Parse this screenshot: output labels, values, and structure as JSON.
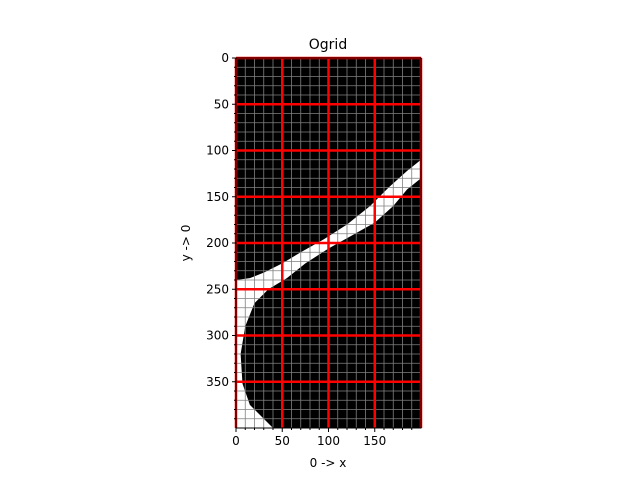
{
  "chart_data": {
    "type": "heatmap",
    "title": "Ogrid",
    "xlabel": "0 -> x",
    "ylabel": "y -> 0",
    "xlim": [
      0,
      200
    ],
    "ylim": [
      400,
      0
    ],
    "y_axis_inverted": true,
    "x_ticks": [
      0,
      50,
      100,
      150
    ],
    "y_ticks": [
      0,
      50,
      100,
      150,
      200,
      250,
      300,
      350
    ],
    "minor_grid_step": 10,
    "major_grid_step": 50,
    "grid": true,
    "colors": {
      "background": "#000000",
      "band": "#ffffff",
      "minor_grid": "#808080",
      "major_grid": "#ff0000"
    },
    "band_upper_edge": [
      [
        0,
        240
      ],
      [
        15,
        238
      ],
      [
        30,
        232
      ],
      [
        50,
        222
      ],
      [
        70,
        210
      ],
      [
        95,
        196
      ],
      [
        120,
        180
      ],
      [
        145,
        160
      ],
      [
        165,
        140
      ],
      [
        185,
        122
      ],
      [
        200,
        110
      ]
    ],
    "band_lower_edge": [
      [
        200,
        130
      ],
      [
        185,
        142
      ],
      [
        170,
        160
      ],
      [
        150,
        178
      ],
      [
        125,
        192
      ],
      [
        100,
        206
      ],
      [
        75,
        222
      ],
      [
        55,
        238
      ],
      [
        35,
        250
      ],
      [
        20,
        265
      ],
      [
        10,
        290
      ],
      [
        5,
        320
      ],
      [
        7,
        352
      ],
      [
        15,
        375
      ],
      [
        30,
        390
      ],
      [
        40,
        400
      ]
    ],
    "band_left_edge": [
      [
        0,
        240
      ],
      [
        0,
        400
      ]
    ],
    "band_bottom_edge": [
      [
        0,
        400
      ],
      [
        40,
        400
      ]
    ]
  }
}
